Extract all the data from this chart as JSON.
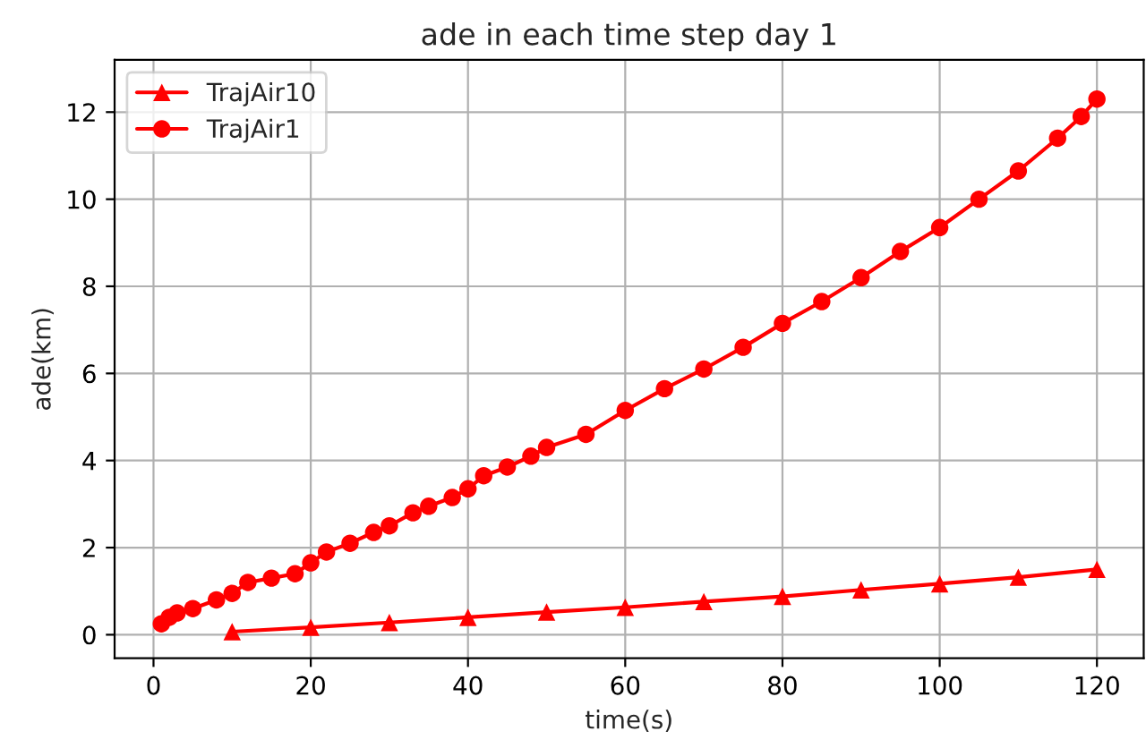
{
  "chart_data": {
    "type": "line",
    "title": "ade in each time step day 1",
    "xlabel": "time(s)",
    "ylabel": "ade(km)",
    "xlim": [
      -4.95,
      125.95
    ],
    "xticks": [
      0,
      20,
      40,
      60,
      80,
      100,
      120
    ],
    "ylim": [
      -0.54,
      13.2
    ],
    "yticks": [
      0,
      2,
      4,
      6,
      8,
      10,
      12
    ],
    "grid": true,
    "legend": "top left",
    "series": [
      {
        "name": "TrajAir10",
        "color": "#ff0000",
        "marker": "triangle",
        "x": [
          10,
          20,
          30,
          40,
          50,
          60,
          70,
          80,
          90,
          100,
          110,
          120
        ],
        "values": [
          0.07,
          0.17,
          0.28,
          0.4,
          0.52,
          0.63,
          0.76,
          0.88,
          1.03,
          1.17,
          1.32,
          1.5
        ]
      },
      {
        "name": "TrajAir1",
        "color": "#ff0000",
        "marker": "circle",
        "x": [
          1,
          2,
          3,
          5,
          8,
          10,
          12,
          15,
          18,
          20,
          22,
          25,
          28,
          30,
          33,
          35,
          38,
          40,
          42,
          45,
          48,
          50,
          55,
          60,
          65,
          70,
          75,
          80,
          85,
          90,
          95,
          100,
          105,
          110,
          115,
          118,
          120
        ],
        "values": [
          0.25,
          0.4,
          0.5,
          0.6,
          0.8,
          0.95,
          1.2,
          1.3,
          1.4,
          1.65,
          1.9,
          2.1,
          2.35,
          2.5,
          2.8,
          2.95,
          3.15,
          3.35,
          3.65,
          3.85,
          4.1,
          4.3,
          4.6,
          5.15,
          5.65,
          6.1,
          6.6,
          7.15,
          7.65,
          8.2,
          8.8,
          9.35,
          10.0,
          10.65,
          11.4,
          11.9,
          12.3
        ]
      }
    ]
  }
}
